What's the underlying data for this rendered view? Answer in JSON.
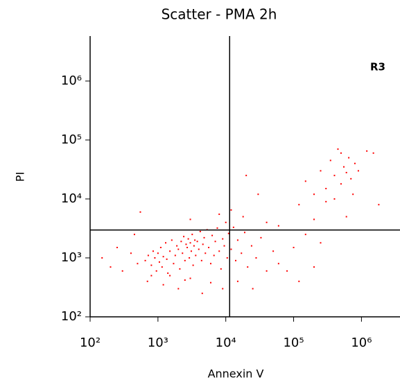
{
  "chart_data": {
    "type": "scatter",
    "title": "Scatter - PMA 2h",
    "xlabel": "Annexin V",
    "ylabel": "PI",
    "region_label": "R3",
    "xscale": "log",
    "yscale": "log",
    "xlim": [
      100,
      3700000
    ],
    "ylim": [
      100,
      5800000
    ],
    "xticks": [
      {
        "value": 100,
        "label": "10²"
      },
      {
        "value": 1000,
        "label": "10³"
      },
      {
        "value": 10000,
        "label": "10⁴"
      },
      {
        "value": 100000,
        "label": "10⁵"
      },
      {
        "value": 1000000,
        "label": "10⁶"
      }
    ],
    "yticks": [
      {
        "value": 100,
        "label": "10²"
      },
      {
        "value": 1000,
        "label": "10³"
      },
      {
        "value": 10000,
        "label": "10⁴"
      },
      {
        "value": 100000,
        "label": "10⁵"
      },
      {
        "value": 1000000,
        "label": "10⁶"
      }
    ],
    "quadrant": {
      "x": 11400,
      "y": 2970
    },
    "color": "#ff0000",
    "x": [
      650,
      720,
      800,
      850,
      900,
      950,
      1000,
      1050,
      1100,
      1150,
      1200,
      1300,
      1350,
      1400,
      1500,
      1600,
      1700,
      1800,
      1900,
      2000,
      2100,
      2200,
      2300,
      2400,
      2500,
      2600,
      2700,
      2800,
      2900,
      3000,
      3100,
      3200,
      3300,
      3400,
      3500,
      3600,
      3800,
      4000,
      4200,
      4400,
      4600,
      4800,
      5000,
      5300,
      5600,
      6000,
      6300,
      6700,
      7000,
      7500,
      8000,
      8500,
      9000,
      9500,
      10000,
      10500,
      11000,
      12000,
      13000,
      14000,
      15000,
      17000,
      19000,
      21000,
      24000,
      28000,
      33000,
      40000,
      50000,
      60000,
      700,
      1200,
      2000,
      3000,
      4500,
      6000,
      9000,
      15000,
      25000,
      1500,
      2500,
      800,
      150,
      200,
      250,
      300,
      400,
      450,
      500,
      550,
      3000,
      8000,
      12000,
      20000,
      18000,
      30000,
      40000,
      120000,
      150000,
      200000,
      250000,
      300000,
      350000,
      400000,
      450000,
      500000,
      550000,
      600000,
      650000,
      700000,
      750000,
      800000,
      500000,
      300000,
      200000,
      150000,
      100000,
      250000,
      1500000,
      1200000,
      1800000,
      900000,
      60000,
      80000,
      120000,
      200000,
      400000,
      600000
    ],
    "values": [
      900,
      1100,
      750,
      1300,
      1000,
      600,
      1200,
      850,
      1500,
      700,
      1050,
      1800,
      950,
      550,
      1300,
      2000,
      800,
      1100,
      1600,
      1400,
      650,
      1900,
      1200,
      2300,
      900,
      1700,
      1500,
      2100,
      1000,
      1800,
      1300,
      2500,
      750,
      1600,
      2000,
      1100,
      1900,
      1400,
      2800,
      900,
      1700,
      2200,
      1200,
      3000,
      1500,
      800,
      2400,
      1100,
      1900,
      3200,
      1300,
      650,
      2100,
      1600,
      4000,
      1000,
      2600,
      1400,
      3300,
      900,
      2000,
      1200,
      2700,
      700,
      1600,
      1000,
      2200,
      600,
      1300,
      800,
      400,
      350,
      300,
      450,
      250,
      380,
      300,
      400,
      300,
      500,
      420,
      500,
      1000,
      700,
      1500,
      600,
      1200,
      2500,
      800,
      6000,
      4500,
      5500,
      6500,
      25000,
      5000,
      12000,
      4000,
      8000,
      20000,
      12000,
      30000,
      15000,
      45000,
      25000,
      70000,
      18000,
      35000,
      28000,
      50000,
      22000,
      12000,
      40000,
      60000,
      9000,
      4500,
      2500,
      1500,
      1800,
      60000,
      65000,
      8000,
      30000,
      3500,
      600,
      400,
      700,
      10000,
      5000
    ]
  }
}
